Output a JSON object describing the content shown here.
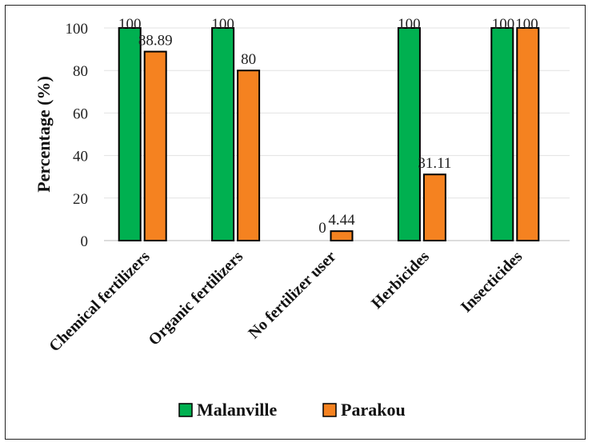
{
  "chart_data": {
    "type": "bar",
    "title": "",
    "xlabel": "",
    "ylabel": "Percentage (%)",
    "ylim": [
      0,
      100
    ],
    "yticks": [
      0,
      20,
      40,
      60,
      80,
      100
    ],
    "categories": [
      "Chemical fertilizers",
      "Organic fertilizers",
      "No fertilizer user",
      "Herbicides",
      "Insecticides"
    ],
    "series": [
      {
        "name": "Malanville",
        "color": "#00b050",
        "values": [
          100,
          100,
          0,
          100,
          100
        ],
        "labels": [
          "100",
          "100",
          "0",
          "100",
          "100"
        ]
      },
      {
        "name": "Parakou",
        "color": "#f58220",
        "values": [
          88.89,
          80,
          4.44,
          31.11,
          100
        ],
        "labels": [
          "88.89",
          "80",
          "4.44",
          "31.11",
          "100"
        ]
      }
    ],
    "legend": "bottom"
  }
}
